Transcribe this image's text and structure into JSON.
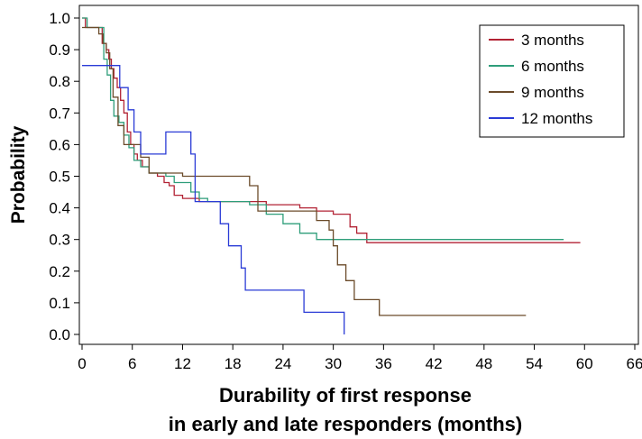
{
  "chart_data": {
    "type": "line",
    "xlabel": "Durability of first response",
    "xlabel_line2": "in early and late responders (months)",
    "ylabel": "Probability",
    "xlim": [
      0,
      66
    ],
    "ylim": [
      0,
      1.0
    ],
    "xticks": [
      "0",
      "6",
      "12",
      "18",
      "24",
      "30",
      "36",
      "42",
      "48",
      "54",
      "60",
      "66"
    ],
    "yticks": [
      "0.0",
      "0.1",
      "0.2",
      "0.3",
      "0.4",
      "0.5",
      "0.6",
      "0.7",
      "0.8",
      "0.9",
      "1.0"
    ],
    "grid": false,
    "legend_position": "top-right",
    "series": [
      {
        "name": "3 months",
        "color": "#b22234",
        "step": [
          [
            0,
            1.0
          ],
          [
            0.4,
            0.97
          ],
          [
            1.8,
            0.97
          ],
          [
            2.4,
            0.92
          ],
          [
            2.9,
            0.9
          ],
          [
            3.2,
            0.87
          ],
          [
            3.5,
            0.84
          ],
          [
            3.8,
            0.81
          ],
          [
            4.2,
            0.78
          ],
          [
            4.6,
            0.74
          ],
          [
            5.0,
            0.7
          ],
          [
            5.4,
            0.64
          ],
          [
            5.8,
            0.6
          ],
          [
            6.2,
            0.57
          ],
          [
            6.6,
            0.55
          ],
          [
            7.2,
            0.53
          ],
          [
            8.0,
            0.51
          ],
          [
            9.0,
            0.5
          ],
          [
            9.8,
            0.48
          ],
          [
            10.4,
            0.47
          ],
          [
            11.0,
            0.44
          ],
          [
            12.0,
            0.43
          ],
          [
            14.0,
            0.42
          ],
          [
            22.0,
            0.41
          ],
          [
            26.0,
            0.4
          ],
          [
            28.0,
            0.39
          ],
          [
            30.0,
            0.38
          ],
          [
            32.0,
            0.34
          ],
          [
            32.8,
            0.32
          ],
          [
            34.0,
            0.29
          ],
          [
            59.5,
            0.29
          ]
        ]
      },
      {
        "name": "6 months",
        "color": "#2e9e7a",
        "step": [
          [
            0,
            1.0
          ],
          [
            0.6,
            0.97
          ],
          [
            2.2,
            0.97
          ],
          [
            2.6,
            0.87
          ],
          [
            3.0,
            0.82
          ],
          [
            3.4,
            0.74
          ],
          [
            3.8,
            0.69
          ],
          [
            4.4,
            0.67
          ],
          [
            5.0,
            0.63
          ],
          [
            5.6,
            0.59
          ],
          [
            6.2,
            0.55
          ],
          [
            7.0,
            0.53
          ],
          [
            8.0,
            0.51
          ],
          [
            10.0,
            0.5
          ],
          [
            11.0,
            0.48
          ],
          [
            13.0,
            0.45
          ],
          [
            14.0,
            0.43
          ],
          [
            15.0,
            0.42
          ],
          [
            20.0,
            0.41
          ],
          [
            22.0,
            0.38
          ],
          [
            24.0,
            0.35
          ],
          [
            26.0,
            0.32
          ],
          [
            28.0,
            0.3
          ],
          [
            57.5,
            0.3
          ]
        ]
      },
      {
        "name": "9 months",
        "color": "#6b4b2a",
        "step": [
          [
            0,
            0.97
          ],
          [
            2.0,
            0.95
          ],
          [
            2.5,
            0.92
          ],
          [
            2.9,
            0.89
          ],
          [
            3.3,
            0.84
          ],
          [
            3.7,
            0.75
          ],
          [
            4.3,
            0.66
          ],
          [
            5.0,
            0.6
          ],
          [
            6.4,
            0.6
          ],
          [
            7.0,
            0.56
          ],
          [
            8.0,
            0.51
          ],
          [
            12.0,
            0.5
          ],
          [
            20.0,
            0.47
          ],
          [
            21.0,
            0.39
          ],
          [
            28.0,
            0.36
          ],
          [
            29.5,
            0.33
          ],
          [
            30.0,
            0.28
          ],
          [
            30.5,
            0.22
          ],
          [
            31.5,
            0.17
          ],
          [
            32.5,
            0.11
          ],
          [
            35.5,
            0.06
          ],
          [
            53.0,
            0.06
          ]
        ]
      },
      {
        "name": "12 months",
        "color": "#2a3bd6",
        "step": [
          [
            0,
            0.85
          ],
          [
            4.0,
            0.85
          ],
          [
            4.5,
            0.78
          ],
          [
            5.5,
            0.71
          ],
          [
            6.2,
            0.64
          ],
          [
            7.0,
            0.57
          ],
          [
            8.0,
            0.57
          ],
          [
            10.0,
            0.64
          ],
          [
            13.0,
            0.57
          ],
          [
            13.5,
            0.42
          ],
          [
            15.0,
            0.42
          ],
          [
            16.5,
            0.35
          ],
          [
            17.5,
            0.28
          ],
          [
            19.0,
            0.21
          ],
          [
            19.5,
            0.14
          ],
          [
            24.0,
            0.14
          ],
          [
            26.5,
            0.07
          ],
          [
            30.5,
            0.07
          ],
          [
            31.3,
            0.0
          ]
        ]
      }
    ]
  }
}
